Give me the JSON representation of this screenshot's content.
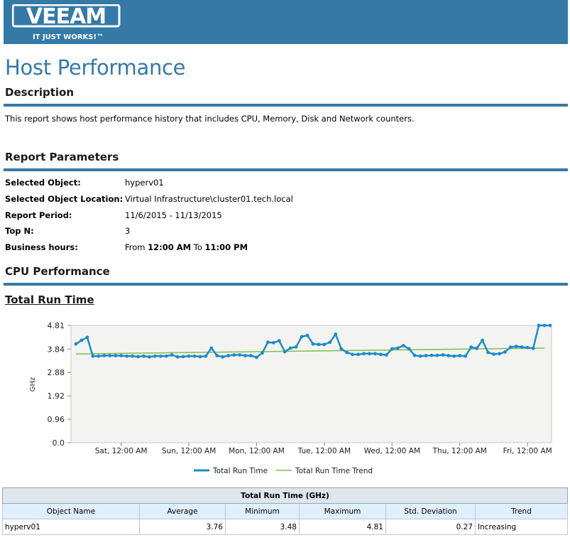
{
  "brand": {
    "name": "VEEAM",
    "tagline": "IT JUST WORKS!™",
    "color": "#3579a7"
  },
  "page_title": "Host Performance",
  "description": {
    "heading": "Description",
    "text": "This report shows host performance history that includes CPU, Memory, Disk and Network counters."
  },
  "report_parameters": {
    "heading": "Report Parameters",
    "items": [
      {
        "label": "Selected Object:",
        "value": "hyperv01"
      },
      {
        "label": "Selected Object Location:",
        "value": "Virtual Infrastructure\\cluster01.tech.local"
      },
      {
        "label": "Report Period:",
        "value": "11/6/2015 - 11/13/2015"
      },
      {
        "label": "Top N:",
        "value": "3"
      }
    ],
    "business_hours": {
      "label": "Business hours:",
      "from_word": "From",
      "from": "12:00 AM",
      "to_word": "To",
      "to": "11:00 PM"
    }
  },
  "cpu_section": {
    "heading": "CPU Performance",
    "subheading": "Total Run Time"
  },
  "chart_data": {
    "type": "line",
    "ylabel": "GHz",
    "ylim": [
      0,
      4.81
    ],
    "y_ticks": [
      "4.81",
      "3.84",
      "2.88",
      "1.92",
      "0.96",
      "0.0"
    ],
    "x_ticks": [
      "Sat, 12:00 AM",
      "Sun, 12:00 AM",
      "Mon, 12:00 AM",
      "Tue, 12:00 AM",
      "Wed, 12:00 AM",
      "Thu, 12:00 AM",
      "Fri, 12:00 AM"
    ],
    "x_tick_hours": [
      16,
      40,
      64,
      88,
      112,
      136,
      160
    ],
    "x_range_hours": [
      0,
      168
    ],
    "grid": false,
    "legend_position": "bottom",
    "series": [
      {
        "name": "Total Run Time",
        "color": "#1f8ac8",
        "x_hours": [
          0,
          2,
          4,
          6,
          8,
          10,
          12,
          14,
          16,
          18,
          20,
          22,
          24,
          26,
          28,
          30,
          32,
          34,
          36,
          38,
          40,
          42,
          44,
          46,
          48,
          50,
          52,
          54,
          56,
          58,
          60,
          62,
          64,
          66,
          68,
          70,
          72,
          74,
          76,
          78,
          80,
          82,
          84,
          86,
          88,
          90,
          92,
          94,
          96,
          98,
          100,
          102,
          104,
          106,
          108,
          110,
          112,
          114,
          116,
          118,
          120,
          122,
          124,
          126,
          128,
          130,
          132,
          134,
          136,
          138,
          140,
          142,
          144,
          146,
          148,
          150,
          152,
          154,
          156,
          158,
          160,
          162,
          164,
          166,
          168
        ],
        "values": [
          4.05,
          4.2,
          4.32,
          3.55,
          3.55,
          3.57,
          3.57,
          3.57,
          3.57,
          3.55,
          3.55,
          3.53,
          3.55,
          3.52,
          3.55,
          3.55,
          3.55,
          3.6,
          3.52,
          3.53,
          3.55,
          3.55,
          3.53,
          3.55,
          3.88,
          3.57,
          3.52,
          3.57,
          3.6,
          3.6,
          3.57,
          3.57,
          3.5,
          3.68,
          4.12,
          4.1,
          4.18,
          3.73,
          3.88,
          3.93,
          4.35,
          4.4,
          4.05,
          4.03,
          4.03,
          4.12,
          4.45,
          3.85,
          3.7,
          3.62,
          3.62,
          3.65,
          3.65,
          3.65,
          3.62,
          3.6,
          3.85,
          3.88,
          3.98,
          3.85,
          3.58,
          3.55,
          3.57,
          3.58,
          3.58,
          3.6,
          3.57,
          3.55,
          3.57,
          3.55,
          3.92,
          3.87,
          4.2,
          3.7,
          3.63,
          3.65,
          3.72,
          3.92,
          3.95,
          3.92,
          3.9,
          3.87,
          4.81,
          4.81,
          4.81
        ]
      },
      {
        "name": "Total Run Time Trend",
        "color": "#7fbf4d",
        "x_hours": [
          0,
          166
        ],
        "values": [
          3.64,
          3.88
        ]
      }
    ]
  },
  "summary_table": {
    "caption": "Total Run Time (GHz)",
    "columns": [
      "Object Name",
      "Average",
      "Minimum",
      "Maximum",
      "Std. Deviation",
      "Trend"
    ],
    "rows": [
      [
        "hyperv01",
        "3.76",
        "3.48",
        "4.81",
        "0.27",
        "Increasing"
      ]
    ]
  }
}
